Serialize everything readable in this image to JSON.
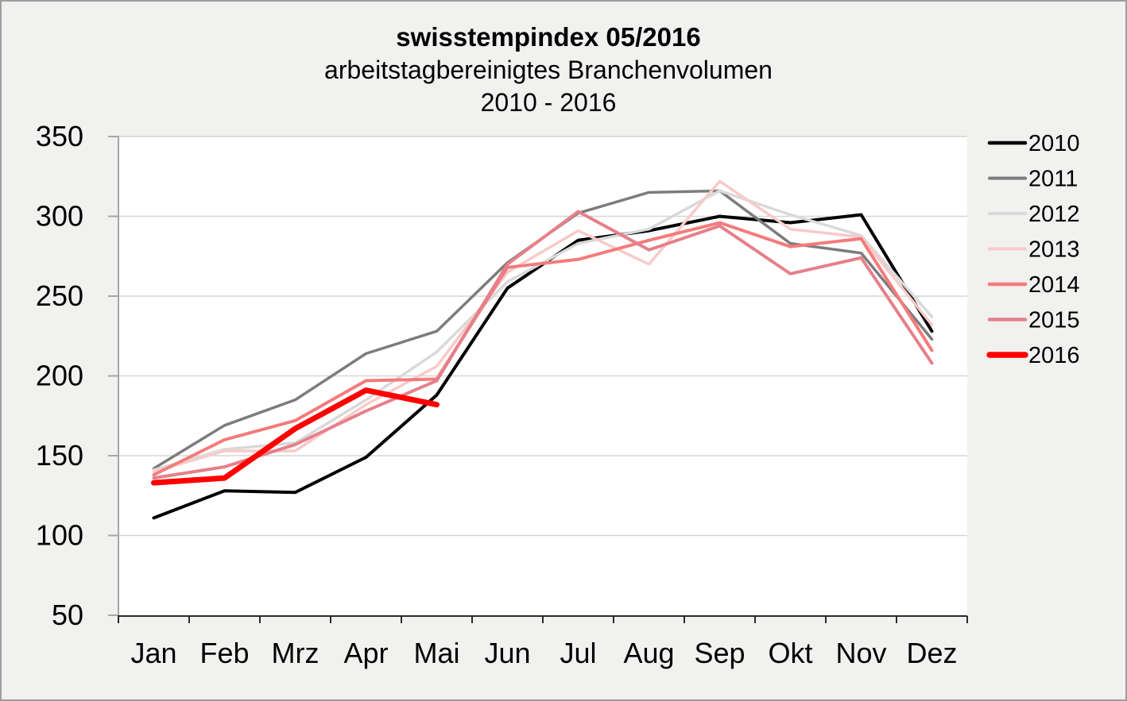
{
  "chart_data": {
    "type": "line",
    "title": "swisstempindex 05/2016",
    "subtitle": "arbeitstagbereinigtes Branchenvolumen",
    "subtitle2": "2010 - 2016",
    "categories": [
      "Jan",
      "Feb",
      "Mrz",
      "Apr",
      "Mai",
      "Jun",
      "Jul",
      "Aug",
      "Sep",
      "Okt",
      "Nov",
      "Dez"
    ],
    "y_tick_labels": [
      "50",
      "100",
      "150",
      "200",
      "250",
      "300",
      "350"
    ],
    "ylim": [
      50,
      350
    ],
    "ytick_interval": 50,
    "grid": "horizontal-only",
    "legend_position": "right",
    "plot_bg": "#ffffff",
    "page_bg": "#f1f1f0",
    "grid_color": "#d6d6d6",
    "y_axis_color": "#a6a6a6",
    "x_axis_color": "#2b2b2b",
    "series": [
      {
        "name": "2010",
        "color": "#000000",
        "width": 4,
        "values": [
          111,
          128,
          127,
          149,
          188,
          255,
          285,
          291,
          300,
          296,
          301,
          228
        ]
      },
      {
        "name": "2011",
        "color": "#7c7c7c",
        "width": 3.5,
        "values": [
          142,
          169,
          185,
          214,
          228,
          271,
          302,
          315,
          316,
          283,
          277,
          223
        ]
      },
      {
        "name": "2012",
        "color": "#d9d9d9",
        "width": 3.5,
        "values": [
          141,
          154,
          158,
          185,
          215,
          259,
          283,
          292,
          316,
          301,
          288,
          237
        ]
      },
      {
        "name": "2013",
        "color": "#f8caca",
        "width": 3.5,
        "values": [
          140,
          153,
          153,
          182,
          206,
          265,
          291,
          270,
          322,
          292,
          287,
          232
        ]
      },
      {
        "name": "2014",
        "color": "#f47b7b",
        "width": 4,
        "values": [
          138,
          160,
          172,
          197,
          198,
          268,
          273,
          285,
          296,
          281,
          286,
          216
        ]
      },
      {
        "name": "2015",
        "color": "#e5808a",
        "width": 4,
        "values": [
          136,
          143,
          157,
          178,
          197,
          270,
          303,
          279,
          294,
          264,
          274,
          208
        ]
      },
      {
        "name": "2016",
        "color": "#fe0000",
        "width": 7,
        "values": [
          133,
          136,
          167,
          191,
          182,
          null,
          null,
          null,
          null,
          null,
          null,
          null
        ]
      }
    ]
  }
}
